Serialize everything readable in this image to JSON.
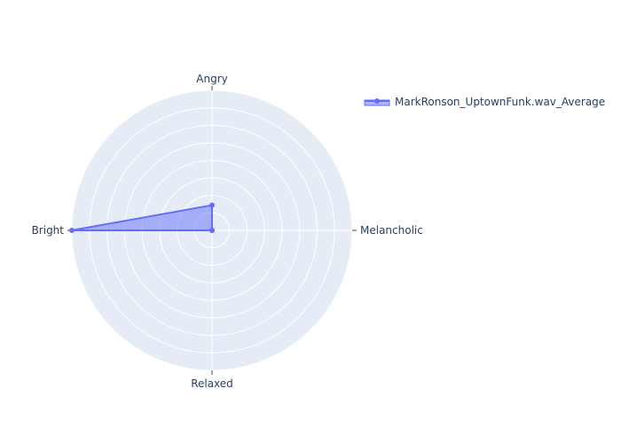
{
  "chart_data": {
    "type": "radar",
    "categories": [
      "Angry",
      "Melancholic",
      "Relaxed",
      "Bright"
    ],
    "series": [
      {
        "name": "MarkRonson_UptownFunk.wav_Average",
        "values": [
          0.18,
          0.0,
          0.0,
          1.0
        ]
      }
    ],
    "rlim": [
      0,
      1
    ],
    "grid": true,
    "legend": "top-right",
    "colors": {
      "line": "#636efa",
      "fill": "rgba(99,110,250,0.5)",
      "polar_bg": "#e5ecf6",
      "grid": "#ffffff",
      "text": "#2a3f5f",
      "tick": "#444444"
    }
  }
}
